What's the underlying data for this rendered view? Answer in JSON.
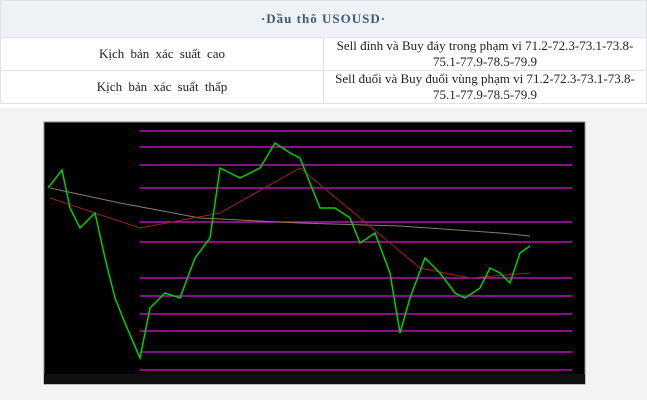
{
  "header": {
    "title": "·Dầu thô USOUSD·"
  },
  "table": {
    "rows": [
      [
        "Kịch bản xác suất cao",
        "Sell đỉnh và Buy đáy trong phạm vi 71.2-72.3-73.1-73.8-75.1-77.9-78.5-79.9"
      ],
      [
        "Kịch bản xác suất thấp",
        "Sell đuổi và Buy đuổi vùng phạm vi 71.2-72.3-73.1-73.8-75.1-77.9-78.5-79.9"
      ]
    ]
  }
}
